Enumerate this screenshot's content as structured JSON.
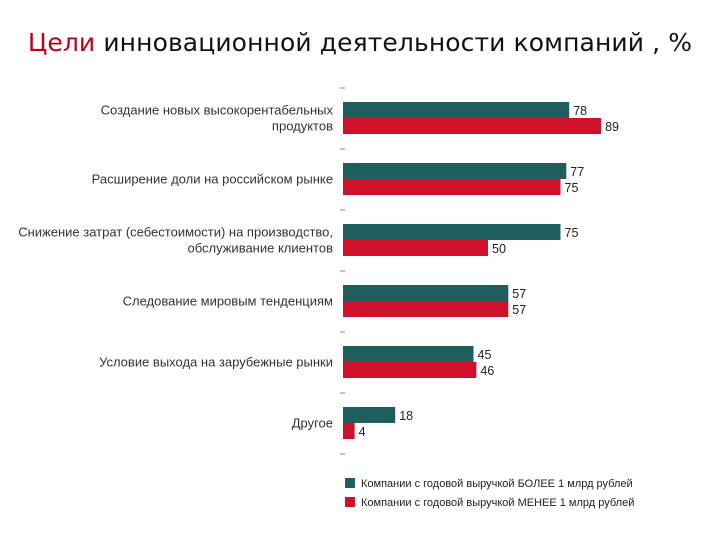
{
  "title": {
    "accent": "Цели",
    "rest": " инновационной деятельности  компаний , %"
  },
  "colors": {
    "series1": "#1f5e5c",
    "series2": "#d0112b",
    "tick": "#888888"
  },
  "chart_data": {
    "type": "bar",
    "orientation": "horizontal",
    "title": "Цели инновационной деятельности  компаний , %",
    "categories": [
      [
        "Создание новых высокорентабельных",
        "продуктов"
      ],
      [
        "Расширение доли на российском рынке"
      ],
      [
        "Снижение затрат (себестоимости) на производство,",
        "обслуживание клиентов"
      ],
      [
        "Следование мировым тенденциям"
      ],
      [
        "Условие выхода на зарубежные рынки"
      ],
      [
        "Другое"
      ]
    ],
    "series": [
      {
        "name": "Компании с годовой выручкой БОЛЕЕ 1 млрд рублей",
        "values": [
          78,
          77,
          75,
          57,
          45,
          18
        ]
      },
      {
        "name": "Компании с годовой выручкой МЕНЕЕ 1 млрд рублей",
        "values": [
          89,
          75,
          50,
          57,
          46,
          4
        ]
      }
    ],
    "xlim": [
      0,
      100
    ],
    "legend": "bottom"
  }
}
